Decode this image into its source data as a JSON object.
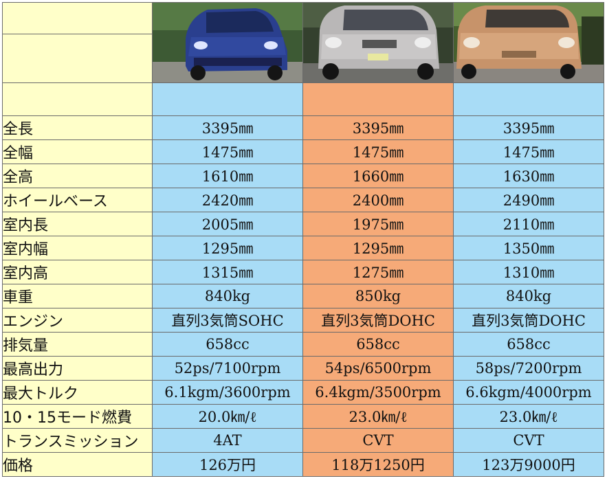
{
  "columns": [
    {
      "name": "car-1",
      "image_icon": "blue-kei-car-photo",
      "colors": {
        "band": "#a8dcf6",
        "body": "#2a3f8e"
      }
    },
    {
      "name": "car-2",
      "image_icon": "silver-kei-car-photo",
      "colors": {
        "band": "#f6aa78",
        "body": "#b9b7b7"
      }
    },
    {
      "name": "car-3",
      "image_icon": "beige-kei-car-photo",
      "colors": {
        "band": "#a8dcf6",
        "body": "#c7936a"
      }
    }
  ],
  "rows": [
    {
      "label": "全長",
      "values": [
        "3395㎜",
        "3395㎜",
        "3395㎜"
      ]
    },
    {
      "label": "全幅",
      "values": [
        "1475㎜",
        "1475㎜",
        "1475㎜"
      ]
    },
    {
      "label": "全高",
      "values": [
        "1610㎜",
        "1660㎜",
        "1630㎜"
      ]
    },
    {
      "label": "ホイールベース",
      "values": [
        "2420㎜",
        "2400㎜",
        "2490㎜"
      ]
    },
    {
      "label": "室内長",
      "values": [
        "2005㎜",
        "1975㎜",
        "2110㎜"
      ]
    },
    {
      "label": "室内幅",
      "values": [
        "1295㎜",
        "1295㎜",
        "1350㎜"
      ]
    },
    {
      "label": "室内高",
      "values": [
        "1315㎜",
        "1275㎜",
        "1310㎜"
      ]
    },
    {
      "label": "車重",
      "values": [
        "840kg",
        "850kg",
        "840kg"
      ]
    },
    {
      "label": "エンジン",
      "values": [
        "直列3気筒SOHC",
        "直列3気筒DOHC",
        "直列3気筒DOHC"
      ]
    },
    {
      "label": "排気量",
      "values": [
        "658cc",
        "658cc",
        "658cc"
      ]
    },
    {
      "label": "最高出力",
      "values": [
        "52ps/7100rpm",
        "54ps/6500rpm",
        "58ps/7200rpm"
      ]
    },
    {
      "label": "最大トルク",
      "values": [
        "6.1kgm/3600rpm",
        "6.4kgm/3500rpm",
        "6.6kgm/4000rpm"
      ]
    },
    {
      "label": "10・15モード燃費",
      "values": [
        "20.0㎞/ℓ",
        "23.0㎞/ℓ",
        "23.0㎞/ℓ"
      ]
    },
    {
      "label": "トランスミッション",
      "values": [
        "4AT",
        "CVT",
        "CVT"
      ]
    },
    {
      "label": "価格",
      "values": [
        "126万円",
        "118万1250円",
        "123万9000円"
      ]
    }
  ]
}
